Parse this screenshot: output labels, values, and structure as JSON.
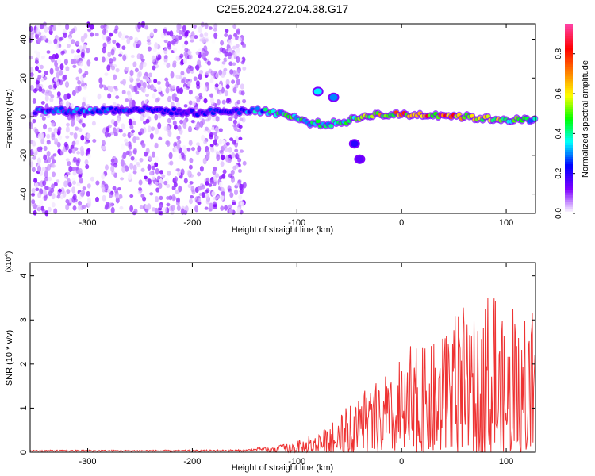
{
  "title": "C2E5.2024.272.04.38.G17",
  "chart_data": [
    {
      "type": "heatmap",
      "title": "C2E5.2024.272.04.38.G17",
      "xlabel": "Height of straight line (km)",
      "ylabel": "Frequency (Hz)",
      "xlim": [
        -355,
        128
      ],
      "ylim": [
        -50,
        48
      ],
      "x_ticks": [
        -300,
        -200,
        -100,
        0,
        100
      ],
      "y_ticks": [
        -40,
        -20,
        0,
        20,
        40
      ],
      "x_tick_labels": [
        "-300",
        "-200",
        "-100",
        "0",
        "100"
      ],
      "y_tick_labels": [
        "-40",
        "-20",
        "0",
        "20",
        "40"
      ],
      "colorbar": {
        "label": "Normalized spectral amplitude",
        "range": [
          0,
          0.95
        ],
        "ticks": [
          0.0,
          0.2,
          0.4,
          0.6,
          0.8
        ],
        "tick_labels": [
          "0.0",
          "0.2",
          "0.4",
          "0.6",
          "0.8"
        ],
        "colors": [
          "#ffffff",
          "#7f00ff",
          "#0000ff",
          "#00ffff",
          "#00ff00",
          "#ffff00",
          "#ff8000",
          "#ff0000",
          "#ff40a0"
        ]
      },
      "noise_region": {
        "x_start": -355,
        "x_end": -150,
        "gap": [
          -298,
          -285
        ],
        "amplitude": 0.12
      },
      "ridge": [
        {
          "x": -340,
          "f": 3,
          "a": 0.3
        },
        {
          "x": -300,
          "f": 3,
          "a": 0.35
        },
        {
          "x": -250,
          "f": 4,
          "a": 0.25
        },
        {
          "x": -200,
          "f": 2,
          "a": 0.2
        },
        {
          "x": -160,
          "f": 3,
          "a": 0.3
        },
        {
          "x": -130,
          "f": 3,
          "a": 0.4
        },
        {
          "x": -110,
          "f": 1,
          "a": 0.5
        },
        {
          "x": -90,
          "f": -3,
          "a": 0.45
        },
        {
          "x": -70,
          "f": -4,
          "a": 0.4
        },
        {
          "x": -50,
          "f": -2,
          "a": 0.45
        },
        {
          "x": -30,
          "f": 1,
          "a": 0.6
        },
        {
          "x": 0,
          "f": 1,
          "a": 0.75
        },
        {
          "x": 40,
          "f": 1,
          "a": 0.8
        },
        {
          "x": 80,
          "f": -1,
          "a": 0.65
        },
        {
          "x": 128,
          "f": -2,
          "a": 0.45
        }
      ],
      "features": [
        {
          "x": -80,
          "f": 13,
          "a": 0.35
        },
        {
          "x": -65,
          "f": 10,
          "a": 0.3
        },
        {
          "x": -45,
          "f": -14,
          "a": 0.2
        },
        {
          "x": -40,
          "f": -22,
          "a": 0.15
        }
      ]
    },
    {
      "type": "line",
      "xlabel": "Height of straight line (km)",
      "ylabel": "SNR (10 * v/v)",
      "scale_label": "(x10",
      "scale_exp": "4",
      "xlim": [
        -355,
        128
      ],
      "ylim": [
        0,
        4.3
      ],
      "x_ticks": [
        -300,
        -200,
        -100,
        0,
        100
      ],
      "y_ticks": [
        0,
        1,
        2,
        3,
        4
      ],
      "x_tick_labels": [
        "-300",
        "-200",
        "-100",
        "0",
        "100"
      ],
      "y_tick_labels": [
        "0",
        "1",
        "2",
        "3",
        "4"
      ],
      "color": "#ee3333",
      "envelope": [
        {
          "x": -355,
          "y": 0.05
        },
        {
          "x": -200,
          "y": 0.05
        },
        {
          "x": -150,
          "y": 0.06
        },
        {
          "x": -120,
          "y": 0.15
        },
        {
          "x": -100,
          "y": 0.3
        },
        {
          "x": -80,
          "y": 0.45
        },
        {
          "x": -60,
          "y": 0.8
        },
        {
          "x": -40,
          "y": 1.3
        },
        {
          "x": -20,
          "y": 1.6
        },
        {
          "x": 0,
          "y": 2.1
        },
        {
          "x": 30,
          "y": 2.8
        },
        {
          "x": 60,
          "y": 3.3
        },
        {
          "x": 90,
          "y": 3.4
        },
        {
          "x": 128,
          "y": 3.0
        }
      ]
    }
  ]
}
